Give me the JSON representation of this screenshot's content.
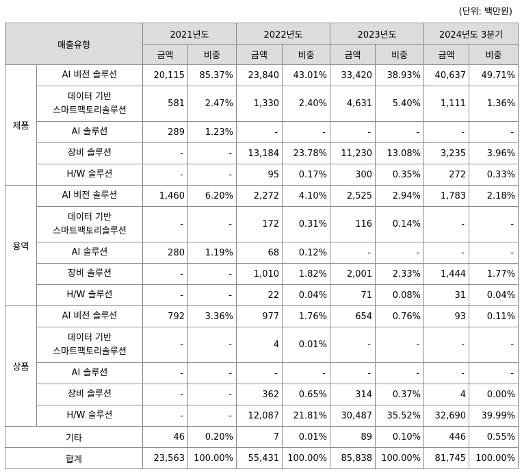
{
  "unit_label": "(단위: 백만원)",
  "header": {
    "type_label": "매출유형",
    "years": [
      "2021년도",
      "2022년도",
      "2023년도",
      "2024년도 3분기"
    ],
    "amount_label": "금액",
    "ratio_label": "비중"
  },
  "groups": [
    {
      "name": "제품",
      "rows": [
        {
          "label": "AI 비전 솔루션",
          "values": [
            "20,115",
            "85.37%",
            "23,840",
            "43.01%",
            "33,420",
            "38.93%",
            "40,637",
            "49.71%"
          ]
        },
        {
          "label": "데이터 기반 스마트팩토리솔루션",
          "label_lines": [
            "데이터 기반",
            "스마트팩토리솔루션"
          ],
          "values": [
            "581",
            "2.47%",
            "1,330",
            "2.40%",
            "4,631",
            "5.40%",
            "1,111",
            "1.36%"
          ]
        },
        {
          "label": "AI 솔루션",
          "values": [
            "289",
            "1.23%",
            "-",
            "-",
            "-",
            "-",
            "-",
            "-"
          ]
        },
        {
          "label": "장비 솔루션",
          "values": [
            "-",
            "-",
            "13,184",
            "23.78%",
            "11,230",
            "13.08%",
            "3,235",
            "3.96%"
          ]
        },
        {
          "label": "H/W 솔루션",
          "values": [
            "-",
            "-",
            "95",
            "0.17%",
            "300",
            "0.35%",
            "272",
            "0.33%"
          ]
        }
      ]
    },
    {
      "name": "용역",
      "rows": [
        {
          "label": "AI 비전 솔루션",
          "values": [
            "1,460",
            "6.20%",
            "2,272",
            "4.10%",
            "2,525",
            "2.94%",
            "1,783",
            "2.18%"
          ]
        },
        {
          "label": "데이터 기반 스마트팩토리솔루션",
          "label_lines": [
            "데이터 기반",
            "스마트팩토리솔루션"
          ],
          "values": [
            "-",
            "-",
            "172",
            "0.31%",
            "116",
            "0.14%",
            "-",
            "-"
          ]
        },
        {
          "label": "AI 솔루션",
          "values": [
            "280",
            "1.19%",
            "68",
            "0.12%",
            "-",
            "-",
            "-",
            "-"
          ]
        },
        {
          "label": "장비 솔루션",
          "values": [
            "-",
            "-",
            "1,010",
            "1.82%",
            "2,001",
            "2.33%",
            "1,444",
            "1.77%"
          ]
        },
        {
          "label": "H/W 솔루션",
          "values": [
            "-",
            "-",
            "22",
            "0.04%",
            "71",
            "0.08%",
            "31",
            "0.04%"
          ]
        }
      ]
    },
    {
      "name": "상품",
      "rows": [
        {
          "label": "AI 비전 솔루션",
          "values": [
            "792",
            "3.36%",
            "977",
            "1.76%",
            "654",
            "0.76%",
            "93",
            "0.11%"
          ]
        },
        {
          "label": "데이터 기반 스마트팩토리솔루션",
          "label_lines": [
            "데이터 기반",
            "스마트팩토리솔루션"
          ],
          "values": [
            "-",
            "-",
            "4",
            "0.01%",
            "-",
            "-",
            "-",
            "-"
          ]
        },
        {
          "label": "AI 솔루션",
          "values": [
            "-",
            "-",
            "-",
            "-",
            "-",
            "-",
            "-",
            "-"
          ]
        },
        {
          "label": "장비 솔루션",
          "values": [
            "-",
            "-",
            "362",
            "0.65%",
            "314",
            "0.37%",
            "4",
            "0.00%"
          ]
        },
        {
          "label": "H/W 솔루션",
          "values": [
            "-",
            "-",
            "12,087",
            "21.81%",
            "30,487",
            "35.52%",
            "32,690",
            "39.99%"
          ]
        }
      ]
    }
  ],
  "other": {
    "label": "기타",
    "values": [
      "46",
      "0.20%",
      "7",
      "0.01%",
      "89",
      "0.10%",
      "446",
      "0.55%"
    ]
  },
  "total": {
    "label": "합계",
    "values": [
      "23,563",
      "100.00%",
      "55,431",
      "100.00%",
      "85,838",
      "100.00%",
      "81,745",
      "100.00%"
    ]
  }
}
